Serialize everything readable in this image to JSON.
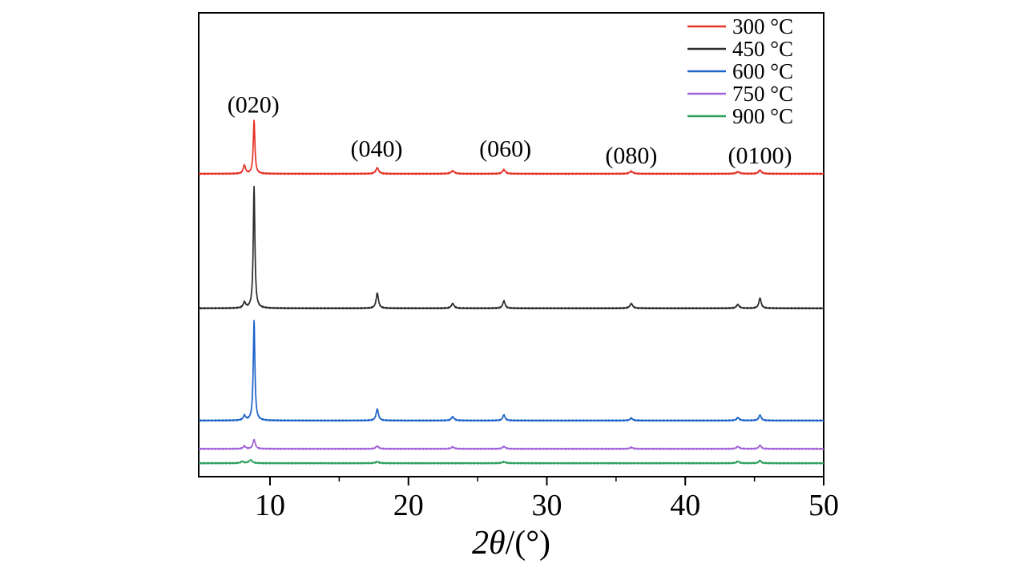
{
  "chart_data": {
    "type": "line",
    "title": "",
    "xlabel_parts": [
      {
        "text": "2θ",
        "italic": true
      },
      {
        "text": "/(°)",
        "italic": false
      }
    ],
    "xlim": [
      4.85,
      50
    ],
    "x_ticks_major": [
      10,
      20,
      30,
      40,
      50
    ],
    "x_ticks_minor": [
      15,
      25,
      35,
      45
    ],
    "ylabel": "",
    "grid": false,
    "legend_position": "top-right",
    "axis_color": "#000000",
    "series": [
      {
        "name": "300 °C",
        "color": "#e53127",
        "baseline": 0.653,
        "peaks": [
          [
            8.15,
            0.018,
            0.1
          ],
          [
            8.85,
            0.115,
            0.07
          ],
          [
            17.75,
            0.013,
            0.12
          ],
          [
            23.2,
            0.006,
            0.15
          ],
          [
            26.9,
            0.009,
            0.12
          ],
          [
            36.1,
            0.005,
            0.15
          ],
          [
            43.8,
            0.004,
            0.15
          ],
          [
            45.4,
            0.008,
            0.12
          ]
        ]
      },
      {
        "name": "450 °C",
        "color": "#2a2a2a",
        "baseline": 0.363,
        "peaks": [
          [
            8.15,
            0.012,
            0.1
          ],
          [
            8.85,
            0.262,
            0.07
          ],
          [
            17.75,
            0.033,
            0.1
          ],
          [
            23.2,
            0.01,
            0.12
          ],
          [
            26.9,
            0.016,
            0.1
          ],
          [
            36.1,
            0.01,
            0.12
          ],
          [
            43.8,
            0.008,
            0.12
          ],
          [
            45.4,
            0.022,
            0.1
          ]
        ]
      },
      {
        "name": "600 °C",
        "color": "#1c63c9",
        "baseline": 0.121,
        "peaks": [
          [
            8.15,
            0.01,
            0.1
          ],
          [
            8.85,
            0.215,
            0.07
          ],
          [
            17.75,
            0.025,
            0.1
          ],
          [
            23.2,
            0.008,
            0.12
          ],
          [
            26.9,
            0.012,
            0.1
          ],
          [
            36.1,
            0.005,
            0.12
          ],
          [
            43.8,
            0.006,
            0.12
          ],
          [
            45.4,
            0.012,
            0.1
          ]
        ]
      },
      {
        "name": "750 °C",
        "color": "#a163d6",
        "baseline": 0.06,
        "peaks": [
          [
            8.15,
            0.006,
            0.1
          ],
          [
            8.85,
            0.02,
            0.1
          ],
          [
            17.75,
            0.006,
            0.12
          ],
          [
            23.2,
            0.004,
            0.12
          ],
          [
            26.9,
            0.005,
            0.12
          ],
          [
            36.1,
            0.003,
            0.12
          ],
          [
            43.8,
            0.005,
            0.12
          ],
          [
            45.4,
            0.008,
            0.1
          ]
        ]
      },
      {
        "name": "900 °C",
        "color": "#2da15c",
        "baseline": 0.029,
        "peaks": [
          [
            8.0,
            0.004,
            0.12
          ],
          [
            8.6,
            0.007,
            0.14
          ],
          [
            17.75,
            0.003,
            0.15
          ],
          [
            26.9,
            0.003,
            0.15
          ],
          [
            43.8,
            0.004,
            0.12
          ],
          [
            45.4,
            0.006,
            0.1
          ]
        ]
      }
    ],
    "annotations": [
      {
        "text": "(020)",
        "x": 8.8,
        "y": 0.785
      },
      {
        "text": "(040)",
        "x": 17.7,
        "y": 0.69
      },
      {
        "text": "(060)",
        "x": 27.0,
        "y": 0.69
      },
      {
        "text": "(080)",
        "x": 36.1,
        "y": 0.675
      },
      {
        "text": "(0100)",
        "x": 45.4,
        "y": 0.675
      }
    ]
  }
}
